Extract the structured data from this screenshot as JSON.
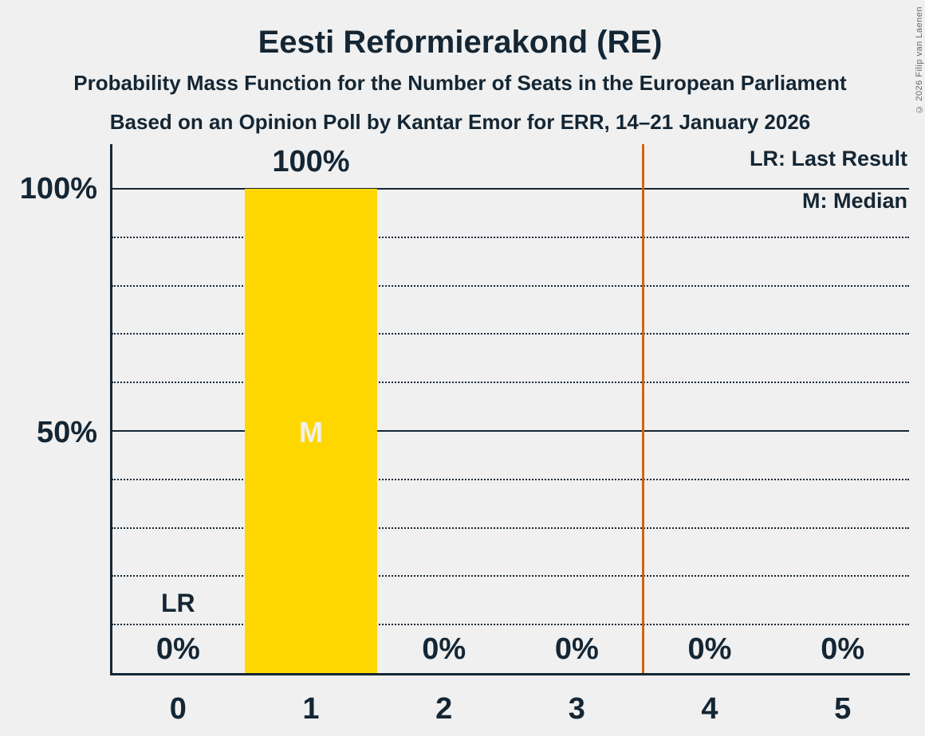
{
  "meta": {
    "copyright": "© 2026 Filip van Laenen",
    "background_color": "#F0F0F0",
    "text_color": "#142634"
  },
  "header": {
    "title": "Eesti Reformierakond (RE)",
    "subtitle1": "Probability Mass Function for the Number of Seats in the European Parliament",
    "subtitle2": "Based on an Opinion Poll by Kantar Emor for ERR, 14–21 January 2026"
  },
  "legend": {
    "lr": "LR: Last Result",
    "m": "M: Median"
  },
  "chart_data": {
    "type": "bar",
    "title": "Eesti Reformierakond (RE)",
    "xlabel": "",
    "ylabel": "",
    "categories": [
      "0",
      "1",
      "2",
      "3",
      "4",
      "5"
    ],
    "values": [
      0,
      100,
      0,
      0,
      0,
      0
    ],
    "value_labels": [
      "0%",
      "100%",
      "0%",
      "0%",
      "0%",
      "0%"
    ],
    "bar_color": "#FFD700",
    "ylim": [
      0,
      100
    ],
    "y_ticks": [
      {
        "label": "100%",
        "value": 100
      },
      {
        "label": "50%",
        "value": 50
      }
    ],
    "gridlines_solid": [
      100,
      50
    ],
    "gridlines_dotted": [
      90,
      80,
      70,
      60,
      40,
      30,
      20,
      10
    ],
    "grid": "on",
    "legend_position": "top-right",
    "annotations": {
      "median_category": "1",
      "median_label": "M",
      "median_label_color": "#F0F0F0",
      "last_result_category": "0",
      "last_result_label": "LR"
    },
    "vertical_line": {
      "x": 3.5,
      "color": "#D2630F"
    }
  }
}
